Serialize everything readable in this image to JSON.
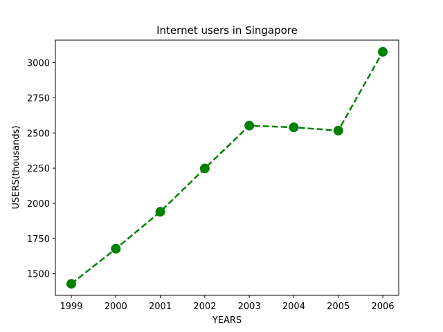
{
  "chart_data": {
    "type": "line",
    "title": "Internet users in Singapore",
    "xlabel": "YEARS",
    "ylabel": "USERS(thousands)",
    "x": [
      "1999",
      "2000",
      "2001",
      "2002",
      "2003",
      "2004",
      "2005",
      "2006"
    ],
    "series": [
      {
        "values": [
          1428,
          1677,
          1940,
          2248,
          2552,
          2540,
          2517,
          3077
        ],
        "color": "#008000",
        "line_style": "dashed",
        "marker": "circle"
      }
    ],
    "yticks": [
      1500,
      1750,
      2000,
      2250,
      2500,
      2750,
      3000
    ],
    "ylim": [
      1346,
      3160
    ],
    "grid": false
  }
}
